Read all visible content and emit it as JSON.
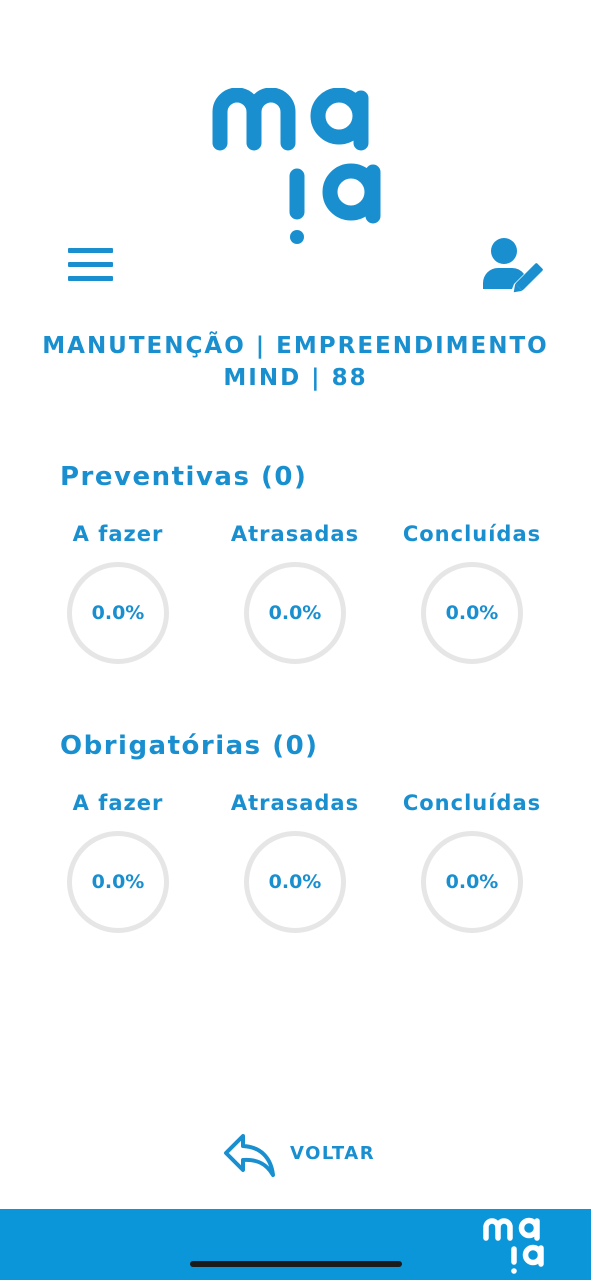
{
  "colors": {
    "accent": "#1a8fd0",
    "footer": "#0a96d9",
    "ring_track": "#e6e6e6"
  },
  "header": {
    "logo_icon": "maia-logo",
    "menu_icon": "hamburger-icon",
    "profile_icon": "user-edit-icon"
  },
  "page_title": {
    "line1": "MANUTENÇÃO | EMPREENDIMENTO",
    "line2": "MIND | 88"
  },
  "preventivas": {
    "title": "Preventivas (0)",
    "stats": [
      {
        "label": "A fazer",
        "value": "0.0%"
      },
      {
        "label": "Atrasadas",
        "value": "0.0%"
      },
      {
        "label": "Concluídas",
        "value": "0.0%"
      }
    ]
  },
  "obrigatorias": {
    "title": "Obrigatórias (0)",
    "stats": [
      {
        "label": "A fazer",
        "value": "0.0%"
      },
      {
        "label": "Atrasadas",
        "value": "0.0%"
      },
      {
        "label": "Concluídas",
        "value": "0.0%"
      }
    ]
  },
  "back": {
    "label": "VOLTAR",
    "icon": "reply-arrow-icon"
  },
  "footer": {
    "logo_icon": "maia-logo-small"
  }
}
